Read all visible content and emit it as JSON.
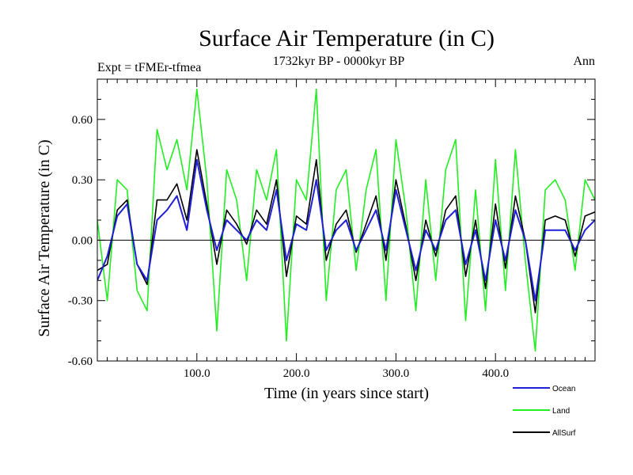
{
  "chart_data": {
    "type": "line",
    "title": "Surface Air Temperature (in C)",
    "subtitle": "1732kyr BP - 0000kyr BP",
    "left_note": "Expt = tFMEr-tfmea",
    "right_note": "Ann",
    "xlabel": "Time (in years since start)",
    "ylabel": "Surface Air Temperature (in C)",
    "xlim": [
      0,
      500
    ],
    "ylim": [
      -0.6,
      0.8
    ],
    "x_ticks": [
      100,
      200,
      300,
      400
    ],
    "x_tick_labels": [
      "100.0",
      "200.0",
      "300.0",
      "400.0"
    ],
    "y_ticks": [
      -0.6,
      -0.3,
      0.0,
      0.3,
      0.6
    ],
    "y_tick_labels": [
      "-0.60",
      "-0.30",
      "0.00",
      "0.30",
      "0.60"
    ],
    "reference_line": 0.0,
    "grid": false,
    "legend_position": "bottom-right, below plot",
    "x": [
      0,
      10,
      20,
      30,
      40,
      50,
      60,
      70,
      80,
      90,
      100,
      110,
      120,
      130,
      140,
      150,
      160,
      170,
      180,
      190,
      200,
      210,
      220,
      230,
      240,
      250,
      260,
      270,
      280,
      290,
      300,
      310,
      320,
      330,
      340,
      350,
      360,
      370,
      380,
      390,
      400,
      410,
      420,
      430,
      440,
      450,
      460,
      470,
      480,
      490,
      500
    ],
    "series": [
      {
        "name": "Ocean",
        "color": "#1f1fd6",
        "values": [
          -0.2,
          -0.08,
          0.12,
          0.18,
          -0.12,
          -0.2,
          0.1,
          0.15,
          0.22,
          0.05,
          0.4,
          0.15,
          -0.05,
          0.1,
          0.05,
          0.0,
          0.1,
          0.05,
          0.25,
          -0.1,
          0.08,
          0.05,
          0.3,
          -0.05,
          0.05,
          0.1,
          -0.05,
          0.05,
          0.15,
          -0.05,
          0.25,
          0.05,
          -0.15,
          0.05,
          -0.05,
          0.1,
          0.15,
          -0.12,
          0.05,
          -0.2,
          0.1,
          -0.1,
          0.15,
          0.0,
          -0.3,
          0.05,
          0.05,
          0.05,
          -0.05,
          0.05,
          0.1
        ]
      },
      {
        "name": "Land",
        "color": "#22ee22",
        "values": [
          0.1,
          -0.3,
          0.3,
          0.25,
          -0.25,
          -0.35,
          0.55,
          0.35,
          0.5,
          0.25,
          0.75,
          0.3,
          -0.45,
          0.35,
          0.2,
          -0.2,
          0.35,
          0.2,
          0.45,
          -0.5,
          0.3,
          0.2,
          0.75,
          -0.3,
          0.25,
          0.35,
          -0.15,
          0.25,
          0.45,
          -0.3,
          0.5,
          0.15,
          -0.35,
          0.3,
          -0.2,
          0.35,
          0.5,
          -0.4,
          0.25,
          -0.35,
          0.4,
          -0.25,
          0.45,
          -0.1,
          -0.55,
          0.25,
          0.3,
          0.2,
          -0.15,
          0.3,
          0.2
        ]
      },
      {
        "name": "AllSurf",
        "color": "#000000",
        "values": [
          -0.15,
          -0.12,
          0.15,
          0.2,
          -0.12,
          -0.22,
          0.2,
          0.2,
          0.28,
          0.1,
          0.45,
          0.18,
          -0.12,
          0.15,
          0.08,
          -0.02,
          0.15,
          0.08,
          0.3,
          -0.18,
          0.12,
          0.08,
          0.4,
          -0.1,
          0.08,
          0.15,
          -0.06,
          0.08,
          0.22,
          -0.1,
          0.3,
          0.07,
          -0.2,
          0.1,
          -0.08,
          0.15,
          0.22,
          -0.18,
          0.1,
          -0.24,
          0.18,
          -0.14,
          0.22,
          0.0,
          -0.36,
          0.1,
          0.12,
          0.1,
          -0.08,
          0.12,
          0.14
        ]
      }
    ]
  }
}
